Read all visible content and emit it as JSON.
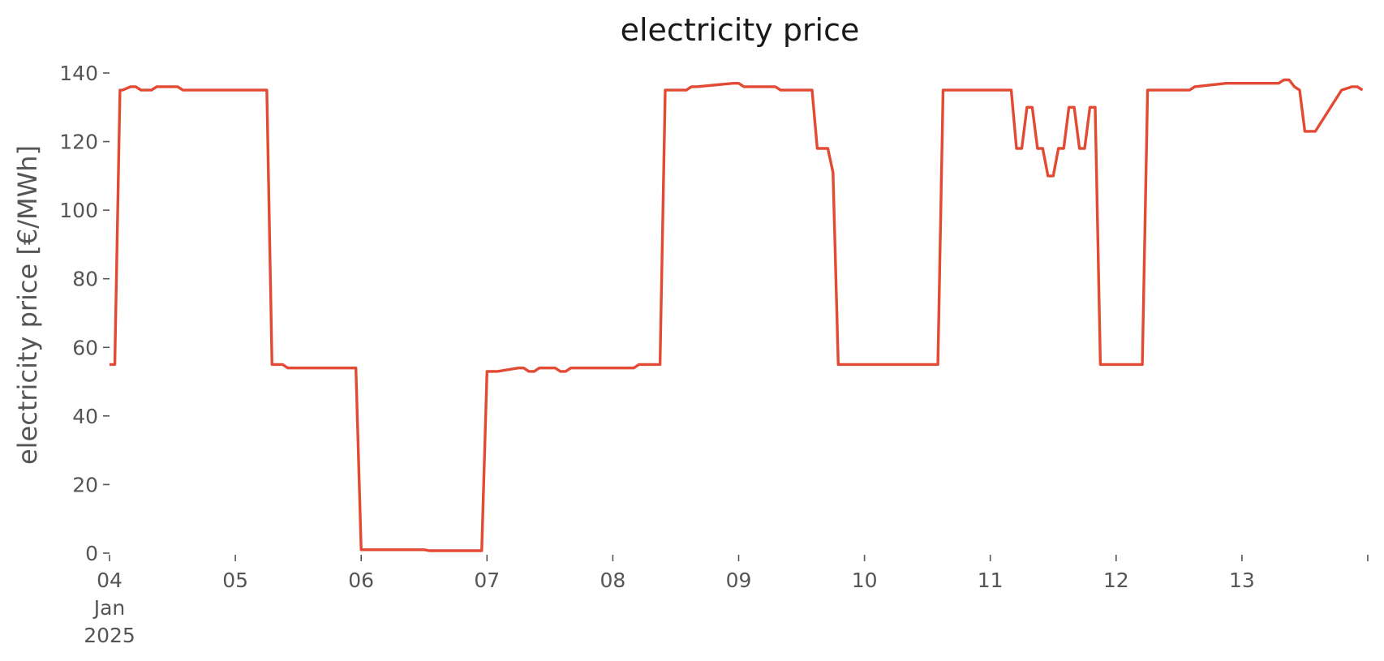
{
  "chart_data": {
    "type": "line",
    "title": "electricity price",
    "xlabel": "",
    "ylabel": "electricity price [€/MWh]",
    "ylim": [
      0,
      140
    ],
    "xlim": [
      "2025-01-04T00:00",
      "2025-01-14T00:00"
    ],
    "yticks": [
      0,
      20,
      40,
      60,
      80,
      100,
      120,
      140
    ],
    "xticks": [
      {
        "x": "2025-01-04T00:00",
        "label": [
          "04",
          "Jan",
          "2025"
        ]
      },
      {
        "x": "2025-01-05T00:00",
        "label": [
          "05"
        ]
      },
      {
        "x": "2025-01-06T00:00",
        "label": [
          "06"
        ]
      },
      {
        "x": "2025-01-07T00:00",
        "label": [
          "07"
        ]
      },
      {
        "x": "2025-01-08T00:00",
        "label": [
          "08"
        ]
      },
      {
        "x": "2025-01-09T00:00",
        "label": [
          "09"
        ]
      },
      {
        "x": "2025-01-10T00:00",
        "label": [
          "10"
        ]
      },
      {
        "x": "2025-01-11T00:00",
        "label": [
          "11"
        ]
      },
      {
        "x": "2025-01-12T00:00",
        "label": [
          "12"
        ]
      },
      {
        "x": "2025-01-13T00:00",
        "label": [
          "13"
        ]
      },
      {
        "x": "2025-01-14T00:00",
        "label": [
          ""
        ]
      }
    ],
    "grid": false,
    "legend": "none",
    "color": "#e24a33",
    "series": [
      {
        "x": [
          "2025-01-04T00:00",
          "2025-01-04T00:15",
          "2025-01-04T01:00",
          "2025-01-04T02:00",
          "2025-01-04T02:30",
          "2025-01-04T04:00",
          "2025-01-04T05:00",
          "2025-01-04T06:00",
          "2025-01-04T08:00",
          "2025-01-04T09:00",
          "2025-01-04T13:00",
          "2025-01-04T14:00",
          "2025-01-04T20:00",
          "2025-01-04T23:00",
          "2025-01-05T00:00",
          "2025-01-05T06:00",
          "2025-01-05T07:00",
          "2025-01-05T08:00",
          "2025-01-05T09:00",
          "2025-01-05T10:00",
          "2025-01-05T11:00",
          "2025-01-05T23:00",
          "2025-01-06T00:00",
          "2025-01-06T12:00",
          "2025-01-06T13:00",
          "2025-01-06T23:00",
          "2025-01-07T00:00",
          "2025-01-07T02:00",
          "2025-01-07T06:00",
          "2025-01-07T07:00",
          "2025-01-07T08:00",
          "2025-01-07T09:00",
          "2025-01-07T10:00",
          "2025-01-07T11:00",
          "2025-01-07T13:00",
          "2025-01-07T14:00",
          "2025-01-07T15:00",
          "2025-01-07T16:00",
          "2025-01-07T19:00",
          "2025-01-07T20:00",
          "2025-01-08T04:00",
          "2025-01-08T05:00",
          "2025-01-08T06:00",
          "2025-01-08T07:00",
          "2025-01-08T08:00",
          "2025-01-08T09:00",
          "2025-01-08T10:00",
          "2025-01-08T14:00",
          "2025-01-08T15:00",
          "2025-01-08T16:00",
          "2025-01-08T23:00",
          "2025-01-09T00:00",
          "2025-01-09T01:00",
          "2025-01-09T07:00",
          "2025-01-09T08:00",
          "2025-01-09T14:00",
          "2025-01-09T15:00",
          "2025-01-09T16:00",
          "2025-01-09T17:00",
          "2025-01-09T18:00",
          "2025-01-09T19:00",
          "2025-01-09T20:00",
          "2025-01-09T22:00",
          "2025-01-09T23:00",
          "2025-01-10T00:00",
          "2025-01-10T01:00",
          "2025-01-10T14:00",
          "2025-01-10T15:00",
          "2025-01-11T04:00",
          "2025-01-11T05:00",
          "2025-01-11T06:00",
          "2025-01-11T07:00",
          "2025-01-11T08:00",
          "2025-01-11T09:00",
          "2025-01-11T10:00",
          "2025-01-11T11:00",
          "2025-01-11T12:00",
          "2025-01-11T13:00",
          "2025-01-11T14:00",
          "2025-01-11T15:00",
          "2025-01-11T16:00",
          "2025-01-11T17:00",
          "2025-01-11T18:00",
          "2025-01-11T19:00",
          "2025-01-11T20:00",
          "2025-01-11T21:00",
          "2025-01-11T22:00",
          "2025-01-11T23:00",
          "2025-01-12T00:00",
          "2025-01-12T05:00",
          "2025-01-12T06:00",
          "2025-01-12T13:00",
          "2025-01-12T14:00",
          "2025-01-12T15:00",
          "2025-01-12T21:00",
          "2025-01-12T22:00",
          "2025-01-13T02:00",
          "2025-01-13T03:00",
          "2025-01-13T05:00",
          "2025-01-13T06:00",
          "2025-01-13T07:00",
          "2025-01-13T08:00",
          "2025-01-13T09:00",
          "2025-01-13T10:00",
          "2025-01-13T11:00",
          "2025-01-13T12:00",
          "2025-01-13T14:00",
          "2025-01-13T19:00",
          "2025-01-13T21:00",
          "2025-01-13T22:00",
          "2025-01-13T23:00"
        ],
        "y": [
          55,
          55,
          55,
          135,
          135,
          136,
          136,
          135,
          135,
          136,
          136,
          135,
          135,
          135,
          135,
          135,
          55,
          55,
          55,
          54,
          54,
          54,
          1,
          1,
          0.7,
          0.7,
          53,
          53,
          54,
          54,
          53,
          53,
          54,
          54,
          54,
          53,
          53,
          54,
          54,
          54,
          54,
          55,
          55,
          55,
          55,
          55,
          135,
          135,
          136,
          136,
          137,
          137,
          136,
          136,
          135,
          135,
          118,
          118,
          118,
          111,
          55,
          55,
          55,
          55,
          55,
          55,
          55,
          135,
          135,
          118,
          118,
          130,
          130,
          118,
          118,
          110,
          110,
          118,
          118,
          130,
          130,
          118,
          118,
          130,
          130,
          55,
          55,
          55,
          55,
          55,
          135,
          135,
          135,
          136,
          137,
          137,
          137,
          137,
          137,
          137,
          137,
          138,
          138,
          136,
          135,
          123,
          123,
          135,
          136,
          136,
          135
        ]
      }
    ]
  }
}
